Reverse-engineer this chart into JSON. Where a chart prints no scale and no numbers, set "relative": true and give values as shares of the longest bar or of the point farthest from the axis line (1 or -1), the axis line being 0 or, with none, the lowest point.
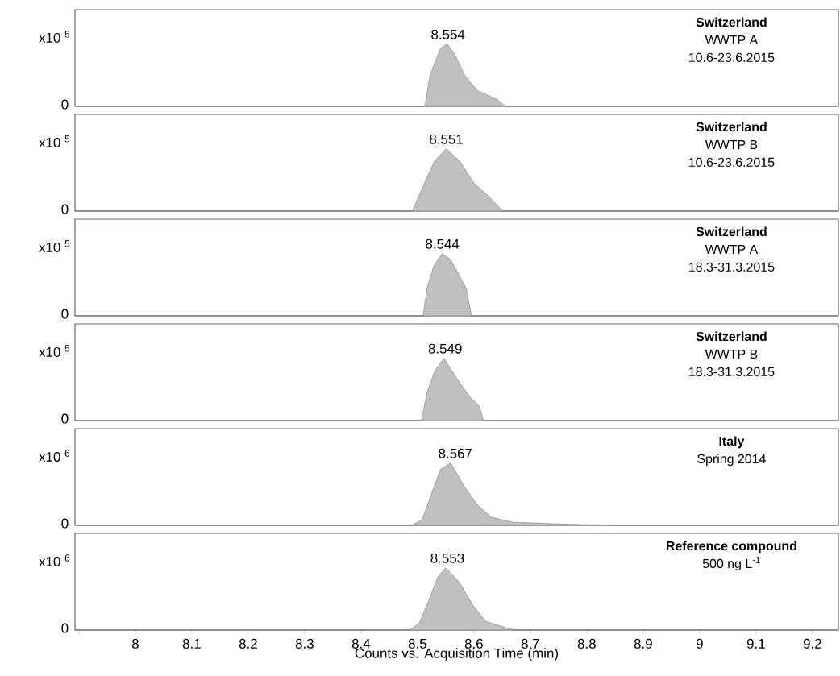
{
  "chart_data": [
    {
      "type": "area",
      "relative": true,
      "title": "Switzerland",
      "subtitle": "WWTP A",
      "color": "#c0c0c0",
      "tick_labels": false,
      "xlim": [
        7.893,
        9.246
      ],
      "x": [
        7.893,
        8.513,
        8.522,
        8.531,
        8.541,
        8.553,
        8.565,
        8.584,
        8.607,
        8.641,
        8.656,
        9.246
      ],
      "values": [
        0,
        0,
        0.49,
        0.71,
        0.93,
        1,
        0.85,
        0.49,
        0.25,
        0.11,
        0,
        0
      ],
      "annotations": [
        "x10 $^{5}$",
        "0",
        "10.6-23.6.2015",
        {
          "text": "8.554",
          "x": 8.554,
          "y": 1
        }
      ]
    },
    {
      "type": "area",
      "relative": true,
      "title": "Switzerland",
      "subtitle": "WWTP B",
      "color": "#c0c0c0",
      "tick_labels": false,
      "xlim": [
        7.893,
        9.246
      ],
      "x": [
        7.893,
        8.491,
        8.51,
        8.53,
        8.551,
        8.575,
        8.6,
        8.625,
        8.651,
        9.246
      ],
      "values": [
        0,
        0,
        0.4,
        0.8,
        1,
        0.8,
        0.45,
        0.25,
        0,
        0
      ],
      "annotations": [
        "x10 $^{5}$",
        "0",
        "10.6-23.6.2015",
        {
          "text": "8.551",
          "x": 8.551,
          "y": 1
        }
      ]
    },
    {
      "type": "area",
      "relative": true,
      "title": "Switzerland",
      "subtitle": "WWTP A",
      "color": "#c0c0c0",
      "tick_labels": false,
      "xlim": [
        7.893,
        9.246
      ],
      "x": [
        7.893,
        8.51,
        8.517,
        8.529,
        8.544,
        8.559,
        8.571,
        8.586,
        8.596,
        9.246
      ],
      "values": [
        0,
        0,
        0.45,
        0.8,
        1,
        0.9,
        0.7,
        0.45,
        0,
        0
      ],
      "annotations": [
        "x10 $^{5}$",
        "0",
        "18.3-31.3.2015",
        {
          "text": "8.544",
          "x": 8.544,
          "y": 1
        }
      ]
    },
    {
      "type": "area",
      "relative": true,
      "title": "Switzerland",
      "subtitle": "WWTP B",
      "color": "#c0c0c0",
      "tick_labels": false,
      "xlim": [
        7.893,
        9.246
      ],
      "x": [
        7.893,
        8.507,
        8.517,
        8.531,
        8.547,
        8.57,
        8.593,
        8.61,
        8.617,
        9.246
      ],
      "values": [
        0,
        0,
        0.46,
        0.8,
        1,
        0.67,
        0.38,
        0.23,
        0,
        0
      ],
      "annotations": [
        "x10 $^{5}$",
        "0",
        "18.3-31.3.2015",
        {
          "text": "8.549",
          "x": 8.549,
          "y": 1
        }
      ]
    },
    {
      "type": "area",
      "relative": true,
      "title": "Italy",
      "subtitle": "Spring 2014",
      "color": "#c0c0c0",
      "tick_labels": false,
      "xlim": [
        7.893,
        9.246
      ],
      "x": [
        7.893,
        8.489,
        8.508,
        8.527,
        8.541,
        8.559,
        8.584,
        8.607,
        8.631,
        8.67,
        8.764,
        8.807,
        8.86,
        9.246
      ],
      "values": [
        0,
        0,
        0.09,
        0.56,
        0.9,
        1,
        0.61,
        0.32,
        0.13,
        0.05,
        0.02,
        0.01,
        0,
        0
      ],
      "annotations": [
        "x10 $^{6}$",
        "0",
        {
          "text": "8.567",
          "x": 8.567,
          "y": 1
        }
      ]
    },
    {
      "type": "area",
      "relative": true,
      "title": "Reference compound",
      "subtitle": "500 ng L$^{-1}$",
      "xlabel": "Counts vs. Acquisition Time (min)",
      "color": "#c0c0c0",
      "tick_labels": "x",
      "xlim": [
        7.893,
        9.246
      ],
      "xticks": [
        {
          "value": 7.9,
          "label": null
        },
        8,
        8.1,
        8.2,
        8.3,
        8.4,
        8.5,
        8.6,
        8.7,
        8.8,
        8.9,
        9,
        9.1,
        9.2
      ],
      "x": [
        7.893,
        8.486,
        8.503,
        8.521,
        8.536,
        8.55,
        8.574,
        8.598,
        8.621,
        8.66,
        8.671,
        9.246
      ],
      "values": [
        0,
        0,
        0.11,
        0.5,
        0.85,
        1,
        0.77,
        0.4,
        0.14,
        0.03,
        0,
        0
      ],
      "annotations": [
        "x10 $^{6}$",
        "0",
        {
          "text": "8.553",
          "x": 8.553,
          "y": 1
        }
      ]
    }
  ]
}
